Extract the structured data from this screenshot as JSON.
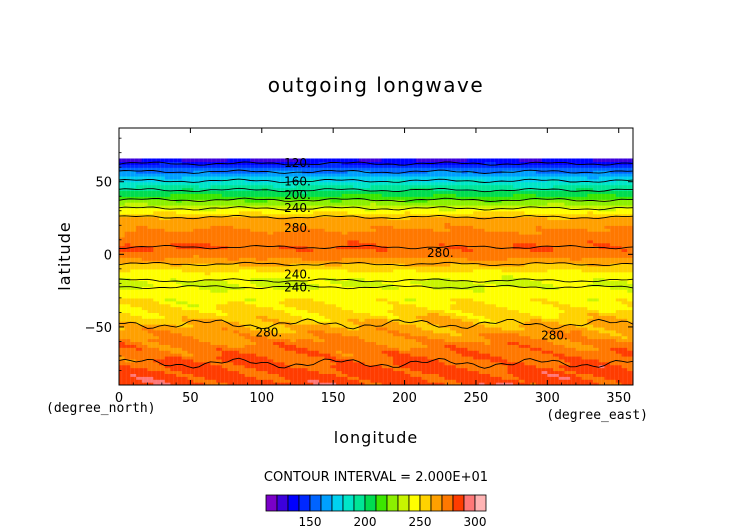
{
  "chart_data": {
    "type": "heatmap",
    "title": "outgoing longwave",
    "xlabel": "longitude",
    "ylabel": "latitude",
    "x_unit": "(degree_east)",
    "y_unit": "(degree_north)",
    "xlim": [
      0,
      360
    ],
    "ylim": [
      -90,
      87
    ],
    "x_ticks": [
      0,
      50,
      100,
      150,
      200,
      250,
      300,
      350
    ],
    "y_ticks": [
      -50,
      0,
      50
    ],
    "data_lat_max": 66,
    "contour_interval_text": "CONTOUR INTERVAL = 2.000E+01",
    "contour_labels": [
      {
        "text": "120.",
        "lon": 125,
        "lat": 63
      },
      {
        "text": "160.",
        "lon": 125,
        "lat": 50
      },
      {
        "text": "200.",
        "lon": 125,
        "lat": 41
      },
      {
        "text": "240.",
        "lon": 125,
        "lat": 32
      },
      {
        "text": "280.",
        "lon": 125,
        "lat": 18
      },
      {
        "text": "280.",
        "lon": 225,
        "lat": 1
      },
      {
        "text": "240.",
        "lon": 125,
        "lat": -14
      },
      {
        "text": "240.",
        "lon": 125,
        "lat": -23
      },
      {
        "text": "280.",
        "lon": 105,
        "lat": -54
      },
      {
        "text": "280.",
        "lon": 305,
        "lat": -56
      }
    ],
    "zonal_profile": {
      "lat": [
        -90,
        -80,
        -70,
        -60,
        -50,
        -40,
        -30,
        -20,
        -15,
        -10,
        -5,
        0,
        5,
        10,
        15,
        20,
        25,
        30,
        35,
        40,
        45,
        50,
        55,
        60,
        66
      ],
      "value": [
        285,
        282,
        278,
        272,
        262,
        252,
        246,
        238,
        243,
        252,
        264,
        276,
        280,
        276,
        272,
        268,
        262,
        246,
        228,
        212,
        198,
        182,
        166,
        150,
        126
      ]
    },
    "colorbar": {
      "range": [
        110,
        310
      ],
      "step": 10,
      "ticks": [
        150,
        200,
        250,
        300
      ],
      "colors": [
        "#7a00c8",
        "#3c00dc",
        "#0000ff",
        "#0028ff",
        "#0064ff",
        "#00a0ff",
        "#00d2f0",
        "#00e6c8",
        "#00e696",
        "#00dc50",
        "#3ce600",
        "#8cf000",
        "#c8f500",
        "#ffff00",
        "#ffd200",
        "#ffa000",
        "#ff7800",
        "#ff3c00",
        "#ff7878",
        "#ffb4b4"
      ]
    }
  }
}
